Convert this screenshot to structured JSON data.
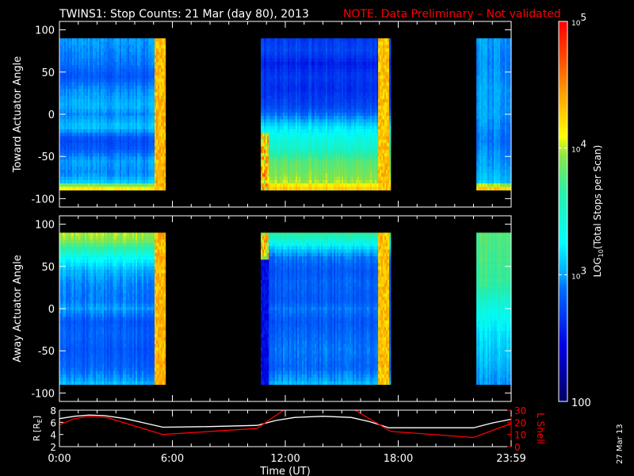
{
  "title": "TWINS1: Stop Counts: 21 Mar (day  80), 2013",
  "note": "NOTE. Data Preliminary – Not validated",
  "date_stamp": "27 Mar 13",
  "chart_data": [
    {
      "type": "heatmap",
      "name": "toward",
      "ylabel": "Toward Actuator Angle",
      "ylim": [
        -110,
        110
      ],
      "yticks": [
        "100",
        "50",
        "0",
        "-50",
        "-100"
      ],
      "ytick_values": [
        100,
        50,
        0,
        -50,
        -100
      ],
      "xlim_hours": [
        0,
        24
      ],
      "segments": [
        {
          "start_h": 0,
          "end_h": 5.6,
          "edge_h": 5.05,
          "edge_log": 4.35,
          "profile_angles": [
            90,
            75,
            60,
            45,
            30,
            10,
            0,
            -15,
            -30,
            -40,
            -55,
            -70,
            -80,
            -85,
            -90
          ],
          "profile_log": [
            3.0,
            2.95,
            2.9,
            2.8,
            2.95,
            3.05,
            2.95,
            3.1,
            2.75,
            2.8,
            3.0,
            2.95,
            3.1,
            4.1,
            4.2
          ]
        },
        {
          "start_h": 10.7,
          "end_h": 17.6,
          "edge_h": 16.9,
          "edge_log": 4.3,
          "profile_angles": [
            90,
            75,
            60,
            45,
            30,
            10,
            0,
            -15,
            -30,
            -40,
            -55,
            -70,
            -80,
            -85,
            -90
          ],
          "profile_log": [
            2.7,
            2.75,
            2.6,
            2.7,
            2.65,
            2.75,
            2.9,
            3.2,
            3.4,
            3.5,
            3.8,
            3.9,
            4.0,
            4.2,
            4.3
          ],
          "start_boost_log": 4.3
        },
        {
          "start_h": 22.15,
          "end_h": 24,
          "edge_h": 24,
          "edge_log": 3.0,
          "profile_angles": [
            90,
            60,
            30,
            0,
            -30,
            -60,
            -80,
            -85,
            -90
          ],
          "profile_log": [
            3.0,
            2.95,
            3.0,
            3.0,
            2.9,
            3.0,
            3.1,
            4.2,
            4.3
          ]
        }
      ]
    },
    {
      "type": "heatmap",
      "name": "away",
      "ylabel": "Away Actuator Angle",
      "ylim": [
        -110,
        110
      ],
      "yticks": [
        "100",
        "50",
        "0",
        "-50",
        "-100"
      ],
      "ytick_values": [
        100,
        50,
        0,
        -50,
        -100
      ],
      "xlim_hours": [
        0,
        24
      ],
      "segments": [
        {
          "start_h": 0,
          "end_h": 5.6,
          "edge_h": 5.05,
          "edge_log": 4.35,
          "profile_angles": [
            90,
            80,
            70,
            60,
            45,
            30,
            10,
            0,
            -15,
            -30,
            -50,
            -70,
            -85,
            -90
          ],
          "profile_log": [
            4.0,
            3.9,
            3.6,
            3.3,
            3.05,
            2.95,
            2.9,
            3.0,
            2.8,
            2.85,
            2.8,
            2.85,
            3.0,
            3.1
          ]
        },
        {
          "start_h": 10.7,
          "end_h": 17.6,
          "edge_h": 16.9,
          "edge_log": 4.3,
          "profile_angles": [
            90,
            80,
            70,
            60,
            45,
            30,
            10,
            0,
            -15,
            -30,
            -50,
            -70,
            -85,
            -90
          ],
          "profile_log": [
            3.7,
            3.4,
            3.1,
            2.9,
            2.8,
            2.85,
            2.8,
            2.9,
            2.8,
            2.85,
            2.9,
            2.85,
            3.0,
            3.1
          ],
          "start_boost_log": 2.5
        },
        {
          "start_h": 22.15,
          "end_h": 24,
          "edge_h": 24,
          "edge_log": 3.8,
          "profile_angles": [
            90,
            60,
            30,
            0,
            -30,
            -60,
            -85,
            -90
          ],
          "profile_log": [
            3.8,
            3.75,
            3.7,
            3.4,
            3.2,
            3.1,
            3.0,
            3.0
          ]
        }
      ]
    },
    {
      "type": "line",
      "name": "orbit",
      "xlabel": "Time (UT)",
      "xticks": [
        "0:00",
        "6:00",
        "12:00",
        "18:00",
        "23:59"
      ],
      "xtick_hours": [
        0,
        6,
        12,
        18,
        24
      ],
      "ylabel_left": "R [R",
      "ylabel_left_sub": "E",
      "ylabel_left_end": "]",
      "ylim_left": [
        2,
        8
      ],
      "yticks_left": [
        "8",
        "6",
        "4",
        "2"
      ],
      "ytick_left_values": [
        8,
        6,
        4,
        2
      ],
      "ylabel_right": "L Shell",
      "ylim_right": [
        0,
        30
      ],
      "yticks_right": [
        "30",
        "20",
        "10",
        "0"
      ],
      "ytick_right_values": [
        30,
        20,
        10,
        0
      ],
      "series": [
        {
          "name": "R",
          "color": "#ffffff",
          "axis": "left",
          "x": [
            0,
            0.8,
            1.6,
            2.4,
            3.5,
            4.5,
            5.5,
            8,
            10.5,
            11.5,
            12.5,
            14,
            15.5,
            16.5,
            17.5,
            20,
            22,
            23,
            24
          ],
          "y": [
            6.6,
            7.0,
            7.2,
            7.1,
            6.6,
            5.9,
            5.2,
            5.3,
            5.5,
            6.3,
            6.8,
            7.0,
            6.8,
            6.1,
            5.1,
            5.1,
            5.1,
            5.9,
            6.5
          ]
        },
        {
          "name": "L Shell",
          "color": "#ff0000",
          "axis": "right",
          "x": [
            0,
            0.8,
            1.6,
            2.5,
            5.5,
            10.5,
            12.0,
            15.6,
            17.6,
            22.0,
            24
          ],
          "y": [
            18,
            23,
            25,
            24,
            10,
            15,
            31,
            31,
            12.5,
            7.5,
            19
          ]
        }
      ]
    },
    {
      "type": "colorbar",
      "label": "LOG",
      "label_sub": "10",
      "label_end": "(Total Stops per Scan)",
      "log_range": [
        2,
        5
      ],
      "ticks": [
        {
          "log": 5,
          "base": "10",
          "exp": "5"
        },
        {
          "log": 4,
          "base": "10",
          "exp": "4"
        },
        {
          "log": 3,
          "base": "10",
          "exp": "3"
        },
        {
          "log": 2,
          "base": "100",
          "exp": ""
        }
      ]
    }
  ]
}
